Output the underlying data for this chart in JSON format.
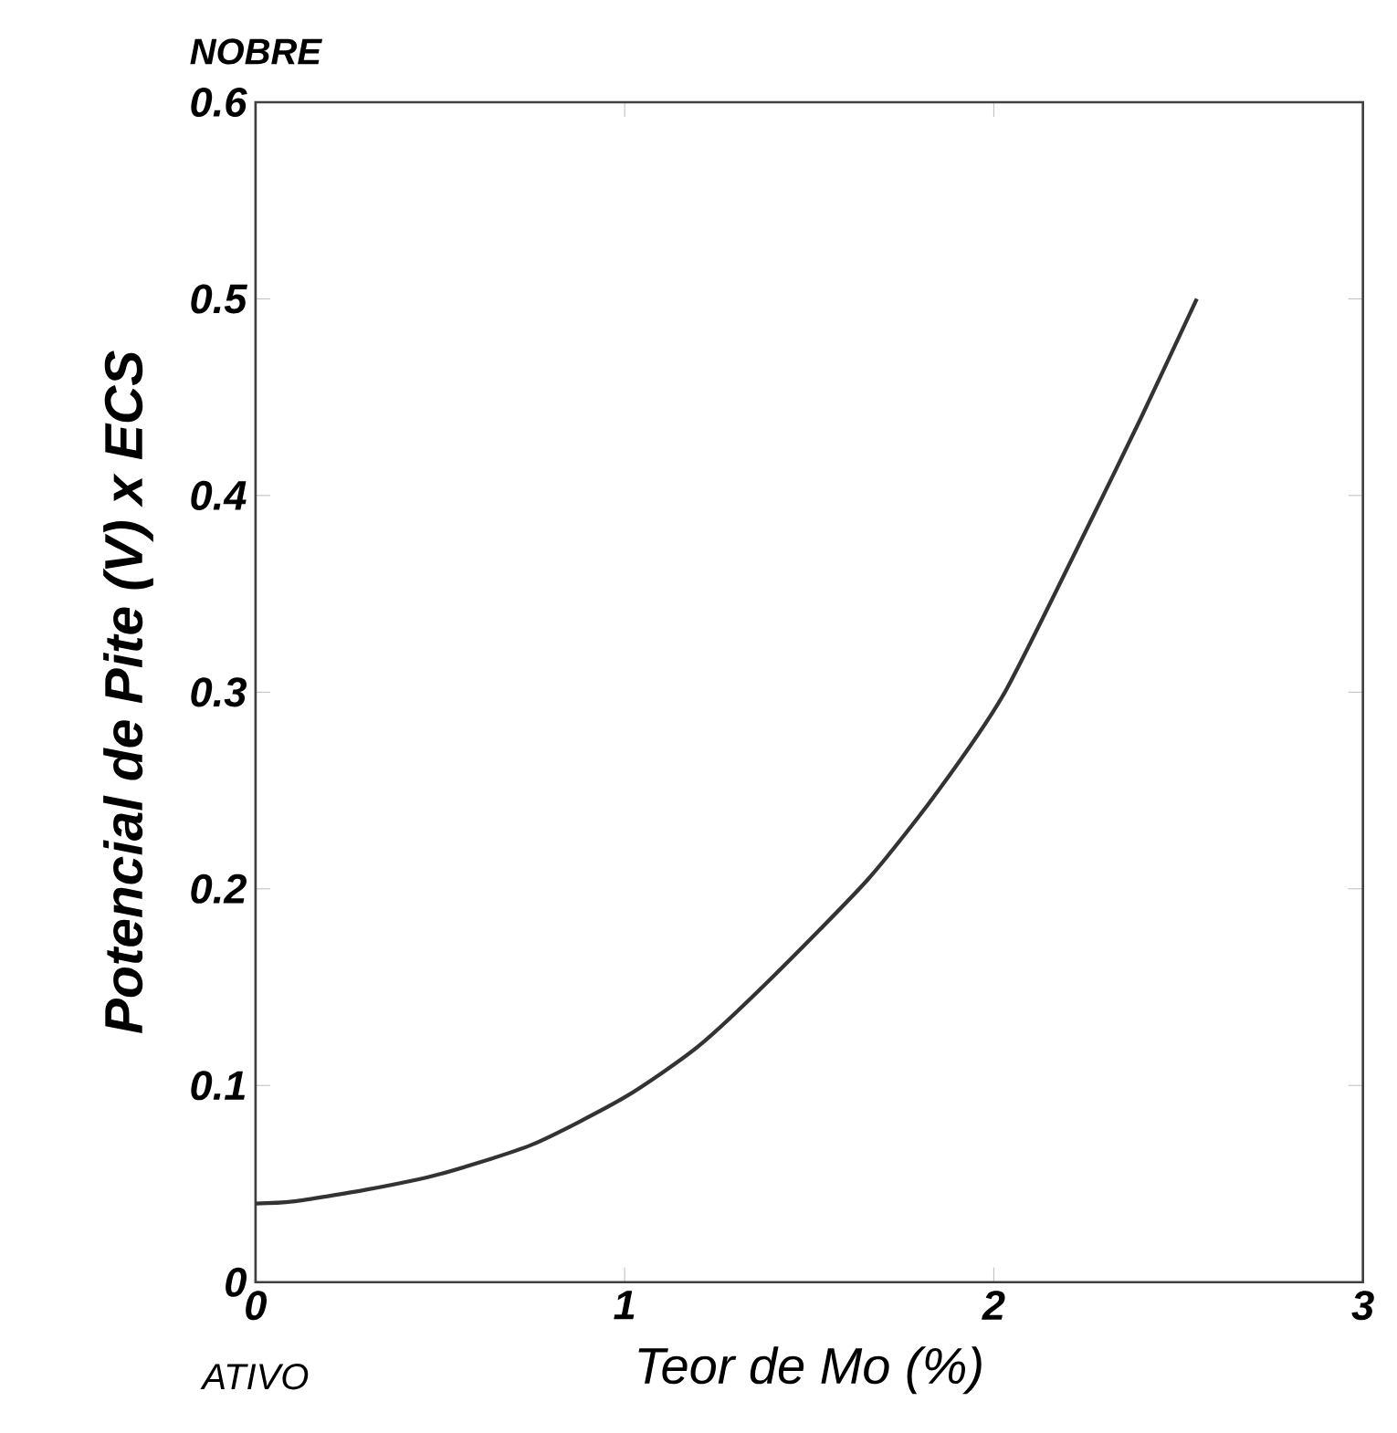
{
  "chart_data": {
    "type": "line",
    "xlabel": "Teor de Mo (%)",
    "ylabel": "Potencial de Pite (V) x ECS",
    "annotations": [
      "NOBRE",
      "ATIVO"
    ],
    "x": [
      0,
      0.1,
      0.3,
      0.5,
      0.75,
      1,
      1.2,
      1.4,
      1.66,
      1.85,
      2.03,
      2.27,
      2.4,
      2.55
    ],
    "series": [
      {
        "color": "#333333",
        "values": [
          0.04,
          0.041,
          0.047,
          0.055,
          0.07,
          0.094,
          0.12,
          0.155,
          0.205,
          0.25,
          0.3,
          0.39,
          0.44,
          0.5
        ]
      }
    ],
    "xlim": [
      0,
      3
    ],
    "ylim": [
      0,
      0.6
    ],
    "xticks": [
      0,
      1,
      2,
      3
    ],
    "yticks": [
      0,
      0.1,
      0.2,
      0.3,
      0.4,
      0.5,
      0.6
    ],
    "marker": "none",
    "line_style": "solid"
  }
}
